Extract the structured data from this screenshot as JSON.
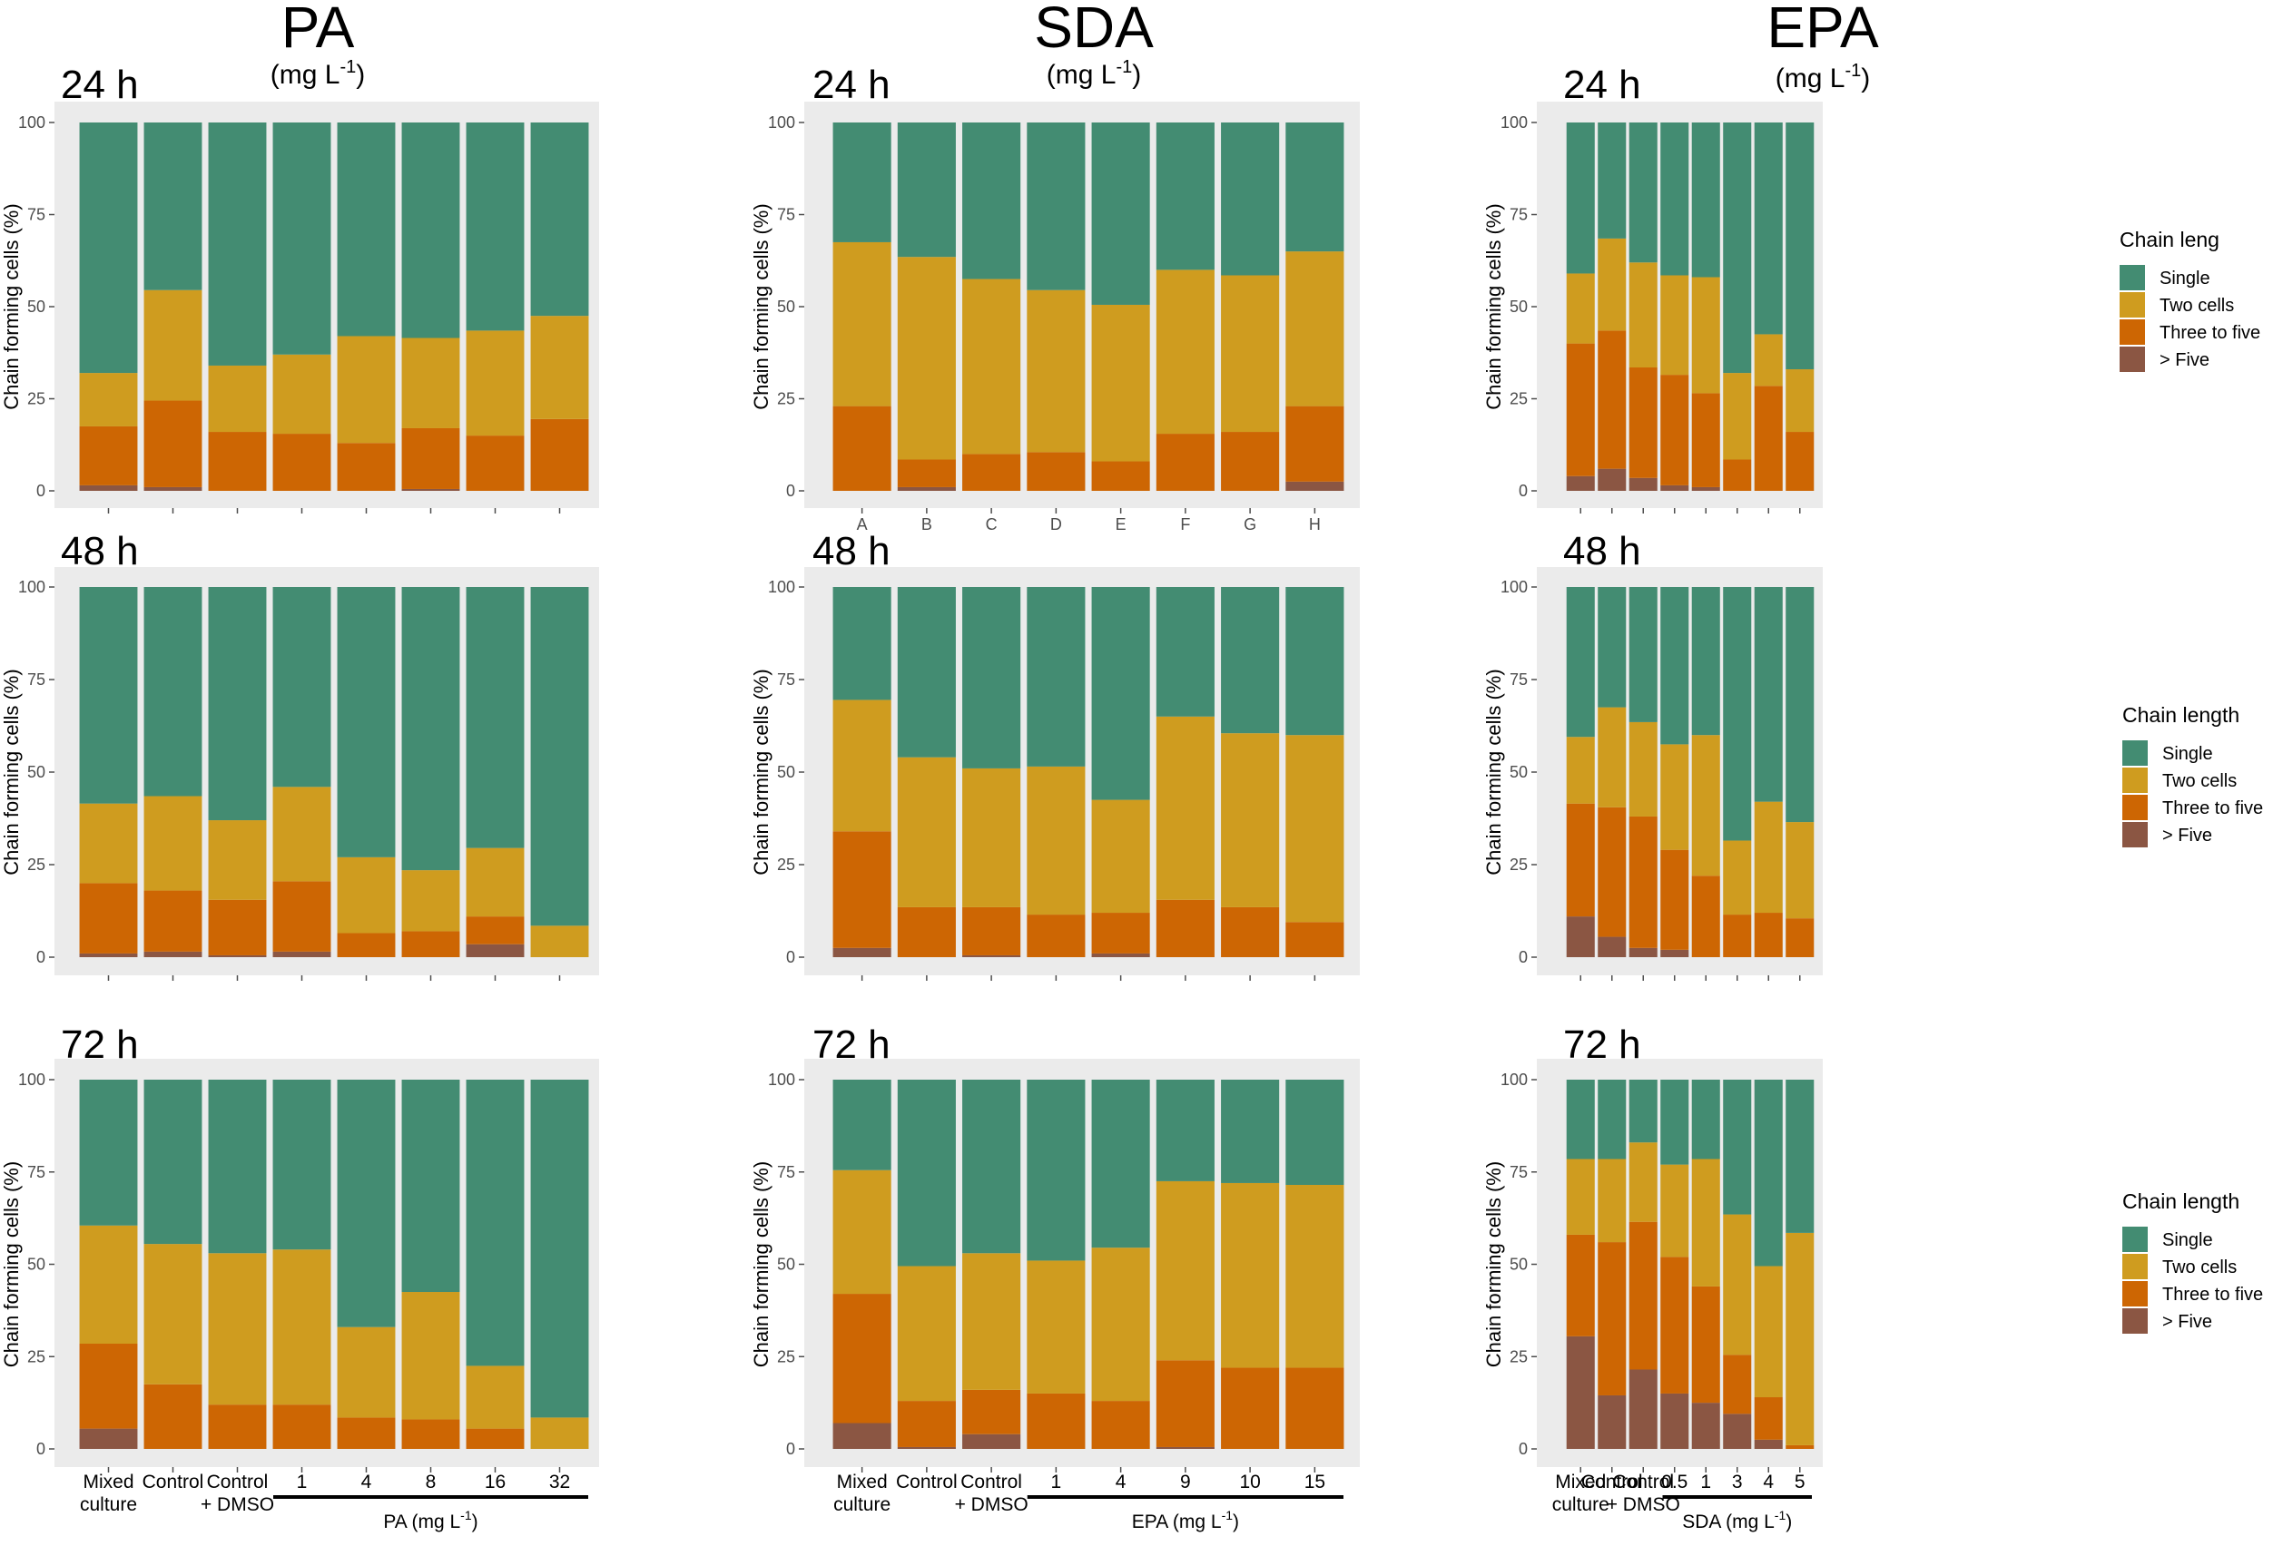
{
  "colors": {
    "Single": "#438c72",
    "Two cells": "#cf9c1f",
    "Three to five": "#cd6603",
    "> Five": "#8b5643",
    "panel_bg": "#ebebeb",
    "tick": "#4d4d4d"
  },
  "figure": {
    "columns": [
      {
        "title": "PA",
        "unit": "(mg L",
        "unit_sup": "-1",
        "unit_close": ")"
      },
      {
        "title": "SDA",
        "unit": "(mg L",
        "unit_sup": "-1",
        "unit_close": ")"
      },
      {
        "title": "EPA",
        "unit": "(mg L",
        "unit_sup": "-1",
        "unit_close": ")"
      }
    ],
    "time_labels": [
      "24 h",
      "48 h",
      "72 h"
    ],
    "legends": [
      {
        "title": "Chain leng",
        "items": [
          "Single",
          "Two cells",
          "Three to five",
          "> Five"
        ]
      },
      {
        "title": "Chain length",
        "items": [
          "Single",
          "Two cells",
          "Three to five",
          "> Five"
        ]
      },
      {
        "title": "Chain length",
        "items": [
          "Single",
          "Two cells",
          "Three to five",
          "> Five"
        ]
      }
    ],
    "bottom_axes": [
      {
        "cats": [
          [
            "Mixed",
            "culture"
          ],
          [
            "Control"
          ],
          [
            "Control",
            "+ DMSO"
          ],
          [
            "1"
          ],
          [
            "4"
          ],
          [
            "8"
          ],
          [
            "16"
          ],
          [
            "32"
          ]
        ],
        "group_label": "PA (mg L",
        "group_sup": "-1",
        "group_close": ")"
      },
      {
        "cats": [
          [
            "Mixed",
            "culture"
          ],
          [
            "Control"
          ],
          [
            "Control",
            "+ DMSO"
          ],
          [
            "1"
          ],
          [
            "4"
          ],
          [
            "9"
          ],
          [
            "10"
          ],
          [
            "15"
          ]
        ],
        "group_label": "EPA (mg L",
        "group_sup": "-1",
        "group_close": ")"
      },
      {
        "cats": [
          [
            "Mixed",
            "culture"
          ],
          [
            "Control"
          ],
          [
            "Control",
            "+ DMSO"
          ],
          [
            "0.5"
          ],
          [
            "1"
          ],
          [
            "3"
          ],
          [
            "4"
          ],
          [
            "5"
          ]
        ],
        "group_label": "SDA (mg L",
        "group_sup": "-1",
        "group_close": ")"
      }
    ]
  },
  "chart_data": [
    {
      "type": "bar",
      "stacked": true,
      "panel": "PA 24 h",
      "ylabel": "Chain forming cells (%)",
      "ylim": [
        0,
        100
      ],
      "yticks": [
        0,
        25,
        50,
        75,
        100
      ],
      "categories": [
        "",
        "",
        "",
        "",
        "",
        "",
        "",
        ""
      ],
      "series": [
        {
          "name": "> Five",
          "values": [
            1.5,
            1.0,
            0,
            0,
            0,
            0.5,
            0,
            0
          ]
        },
        {
          "name": "Three to five",
          "values": [
            16,
            23.5,
            16,
            15.5,
            13,
            16.5,
            15,
            19.5
          ]
        },
        {
          "name": "Two cells",
          "values": [
            14.5,
            30,
            18,
            21.5,
            29,
            24.5,
            28.5,
            28
          ]
        },
        {
          "name": "Single",
          "values": [
            68,
            45.5,
            66,
            63,
            58,
            58.5,
            56.5,
            52.5
          ]
        }
      ]
    },
    {
      "type": "bar",
      "stacked": true,
      "panel": "SDA 24 h",
      "ylabel": "Chain forming cells (%)",
      "ylim": [
        0,
        100
      ],
      "yticks": [
        0,
        25,
        50,
        75,
        100
      ],
      "categories": [
        "A",
        "B",
        "C",
        "D",
        "E",
        "F",
        "G",
        "H"
      ],
      "series": [
        {
          "name": "> Five",
          "values": [
            0,
            1,
            0,
            0,
            0,
            0,
            0,
            2.5
          ]
        },
        {
          "name": "Three to five",
          "values": [
            23,
            7.5,
            10,
            10.5,
            8,
            15.5,
            16,
            20.5
          ]
        },
        {
          "name": "Two cells",
          "values": [
            44.5,
            55,
            47.5,
            44,
            42.5,
            44.5,
            42.5,
            42
          ]
        },
        {
          "name": "Single",
          "values": [
            32.5,
            36.5,
            42.5,
            45.5,
            49.5,
            40,
            41.5,
            35
          ]
        }
      ]
    },
    {
      "type": "bar",
      "stacked": true,
      "panel": "EPA 24 h",
      "ylabel": "Chain forming cells (%)",
      "ylim": [
        0,
        100
      ],
      "yticks": [
        0,
        25,
        50,
        75,
        100
      ],
      "categories": [
        "",
        "",
        "",
        "",
        "",
        "",
        "",
        ""
      ],
      "series": [
        {
          "name": "> Five",
          "values": [
            4,
            6,
            3.5,
            1.5,
            1,
            0,
            0,
            0
          ]
        },
        {
          "name": "Three to five",
          "values": [
            36,
            37.5,
            30,
            30,
            25.5,
            8.5,
            28.5,
            16
          ]
        },
        {
          "name": "Two cells",
          "values": [
            19,
            25,
            28.5,
            27,
            31.5,
            23.5,
            14,
            17
          ]
        },
        {
          "name": "Single",
          "values": [
            41,
            31.5,
            38,
            41.5,
            42,
            68,
            57.5,
            67
          ]
        }
      ]
    },
    {
      "type": "bar",
      "stacked": true,
      "panel": "PA 48 h",
      "ylabel": "Chain forming cells (%)",
      "ylim": [
        0,
        100
      ],
      "yticks": [
        0,
        25,
        50,
        75,
        100
      ],
      "categories": [
        "",
        "",
        "",
        "",
        "",
        "",
        "",
        ""
      ],
      "series": [
        {
          "name": "> Five",
          "values": [
            1,
            1.5,
            0.5,
            1.5,
            0,
            0,
            3.5,
            0
          ]
        },
        {
          "name": "Three to five",
          "values": [
            19,
            16.5,
            15,
            19,
            6.5,
            7,
            7.5,
            0
          ]
        },
        {
          "name": "Two cells",
          "values": [
            21.5,
            25.5,
            21.5,
            25.5,
            20.5,
            16.5,
            18.5,
            8.5
          ]
        },
        {
          "name": "Single",
          "values": [
            58.5,
            56.5,
            63,
            54,
            73,
            76.5,
            70.5,
            91.5
          ]
        }
      ]
    },
    {
      "type": "bar",
      "stacked": true,
      "panel": "SDA 48 h",
      "ylabel": "Chain forming cells (%)",
      "ylim": [
        0,
        100
      ],
      "yticks": [
        0,
        25,
        50,
        75,
        100
      ],
      "categories": [
        "",
        "",
        "",
        "",
        "",
        "",
        "",
        ""
      ],
      "series": [
        {
          "name": "> Five",
          "values": [
            2.5,
            0,
            0.5,
            0,
            1,
            0,
            0,
            0
          ]
        },
        {
          "name": "Three to five",
          "values": [
            31.5,
            13.5,
            13,
            11.5,
            11,
            15.5,
            13.5,
            9.5
          ]
        },
        {
          "name": "Two cells",
          "values": [
            35.5,
            40.5,
            37.5,
            40,
            30.5,
            49.5,
            47,
            50.5
          ]
        },
        {
          "name": "Single",
          "values": [
            30.5,
            46,
            49,
            48.5,
            57.5,
            35,
            39.5,
            40
          ]
        }
      ]
    },
    {
      "type": "bar",
      "stacked": true,
      "panel": "EPA 48 h",
      "ylabel": "Chain forming cells (%)",
      "ylim": [
        0,
        100
      ],
      "yticks": [
        0,
        25,
        50,
        75,
        100
      ],
      "categories": [
        "",
        "",
        "",
        "",
        "",
        "",
        "",
        ""
      ],
      "series": [
        {
          "name": "> Five",
          "values": [
            11,
            5.5,
            2.5,
            2,
            0,
            0,
            0,
            0
          ]
        },
        {
          "name": "Three to five",
          "values": [
            30.5,
            35,
            35.5,
            27,
            22,
            11.5,
            12,
            10.5
          ]
        },
        {
          "name": "Two cells",
          "values": [
            18,
            27,
            25.5,
            28.5,
            38,
            20,
            30,
            26
          ]
        },
        {
          "name": "Single",
          "values": [
            40.5,
            32.5,
            36.5,
            42.5,
            40,
            68.5,
            58,
            63.5
          ]
        }
      ]
    },
    {
      "type": "bar",
      "stacked": true,
      "panel": "PA 72 h",
      "ylabel": "Chain forming cells (%)",
      "ylim": [
        0,
        100
      ],
      "yticks": [
        0,
        25,
        50,
        75,
        100
      ],
      "categories": [
        "",
        "",
        "",
        "",
        "",
        "",
        "",
        ""
      ],
      "series": [
        {
          "name": "> Five",
          "values": [
            5.5,
            0,
            0,
            0,
            0,
            0,
            0,
            0
          ]
        },
        {
          "name": "Three to five",
          "values": [
            23,
            17.5,
            12,
            12,
            8.5,
            8,
            5.5,
            0
          ]
        },
        {
          "name": "Two cells",
          "values": [
            32,
            38,
            41,
            42,
            24.5,
            34.5,
            17,
            8.5
          ]
        },
        {
          "name": "Single",
          "values": [
            39.5,
            44.5,
            47,
            46,
            67,
            57.5,
            77.5,
            91.5
          ]
        }
      ]
    },
    {
      "type": "bar",
      "stacked": true,
      "panel": "SDA 72 h",
      "ylabel": "Chain forming cells (%)",
      "ylim": [
        0,
        100
      ],
      "yticks": [
        0,
        25,
        50,
        75,
        100
      ],
      "categories": [
        "",
        "",
        "",
        "",
        "",
        "",
        "",
        ""
      ],
      "series": [
        {
          "name": "> Five",
          "values": [
            7,
            0.5,
            4,
            0,
            0,
            0.5,
            0,
            0
          ]
        },
        {
          "name": "Three to five",
          "values": [
            35,
            12.5,
            12,
            15,
            13,
            23.5,
            22,
            22
          ]
        },
        {
          "name": "Two cells",
          "values": [
            33.5,
            36.5,
            37,
            36,
            41.5,
            48.5,
            50,
            49.5
          ]
        },
        {
          "name": "Single",
          "values": [
            24.5,
            50.5,
            47,
            49,
            45.5,
            27.5,
            28,
            28.5
          ]
        }
      ]
    },
    {
      "type": "bar",
      "stacked": true,
      "panel": "EPA 72 h",
      "ylabel": "Chain forming cells (%)",
      "ylim": [
        0,
        100
      ],
      "yticks": [
        0,
        25,
        50,
        75,
        100
      ],
      "categories": [
        "",
        "",
        "",
        "",
        "",
        "",
        "",
        ""
      ],
      "series": [
        {
          "name": "> Five",
          "values": [
            30.5,
            14.5,
            21.5,
            15,
            12.5,
            9.5,
            2.5,
            0
          ]
        },
        {
          "name": "Three to five",
          "values": [
            27.5,
            41.5,
            40,
            37,
            31.5,
            16,
            11.5,
            1
          ]
        },
        {
          "name": "Two cells",
          "values": [
            20.5,
            22.5,
            21.5,
            25,
            34.5,
            38,
            35.5,
            57.5
          ]
        },
        {
          "name": "Single",
          "values": [
            21.5,
            21.5,
            17,
            23,
            21.5,
            36.5,
            50.5,
            41.5
          ]
        }
      ]
    }
  ]
}
